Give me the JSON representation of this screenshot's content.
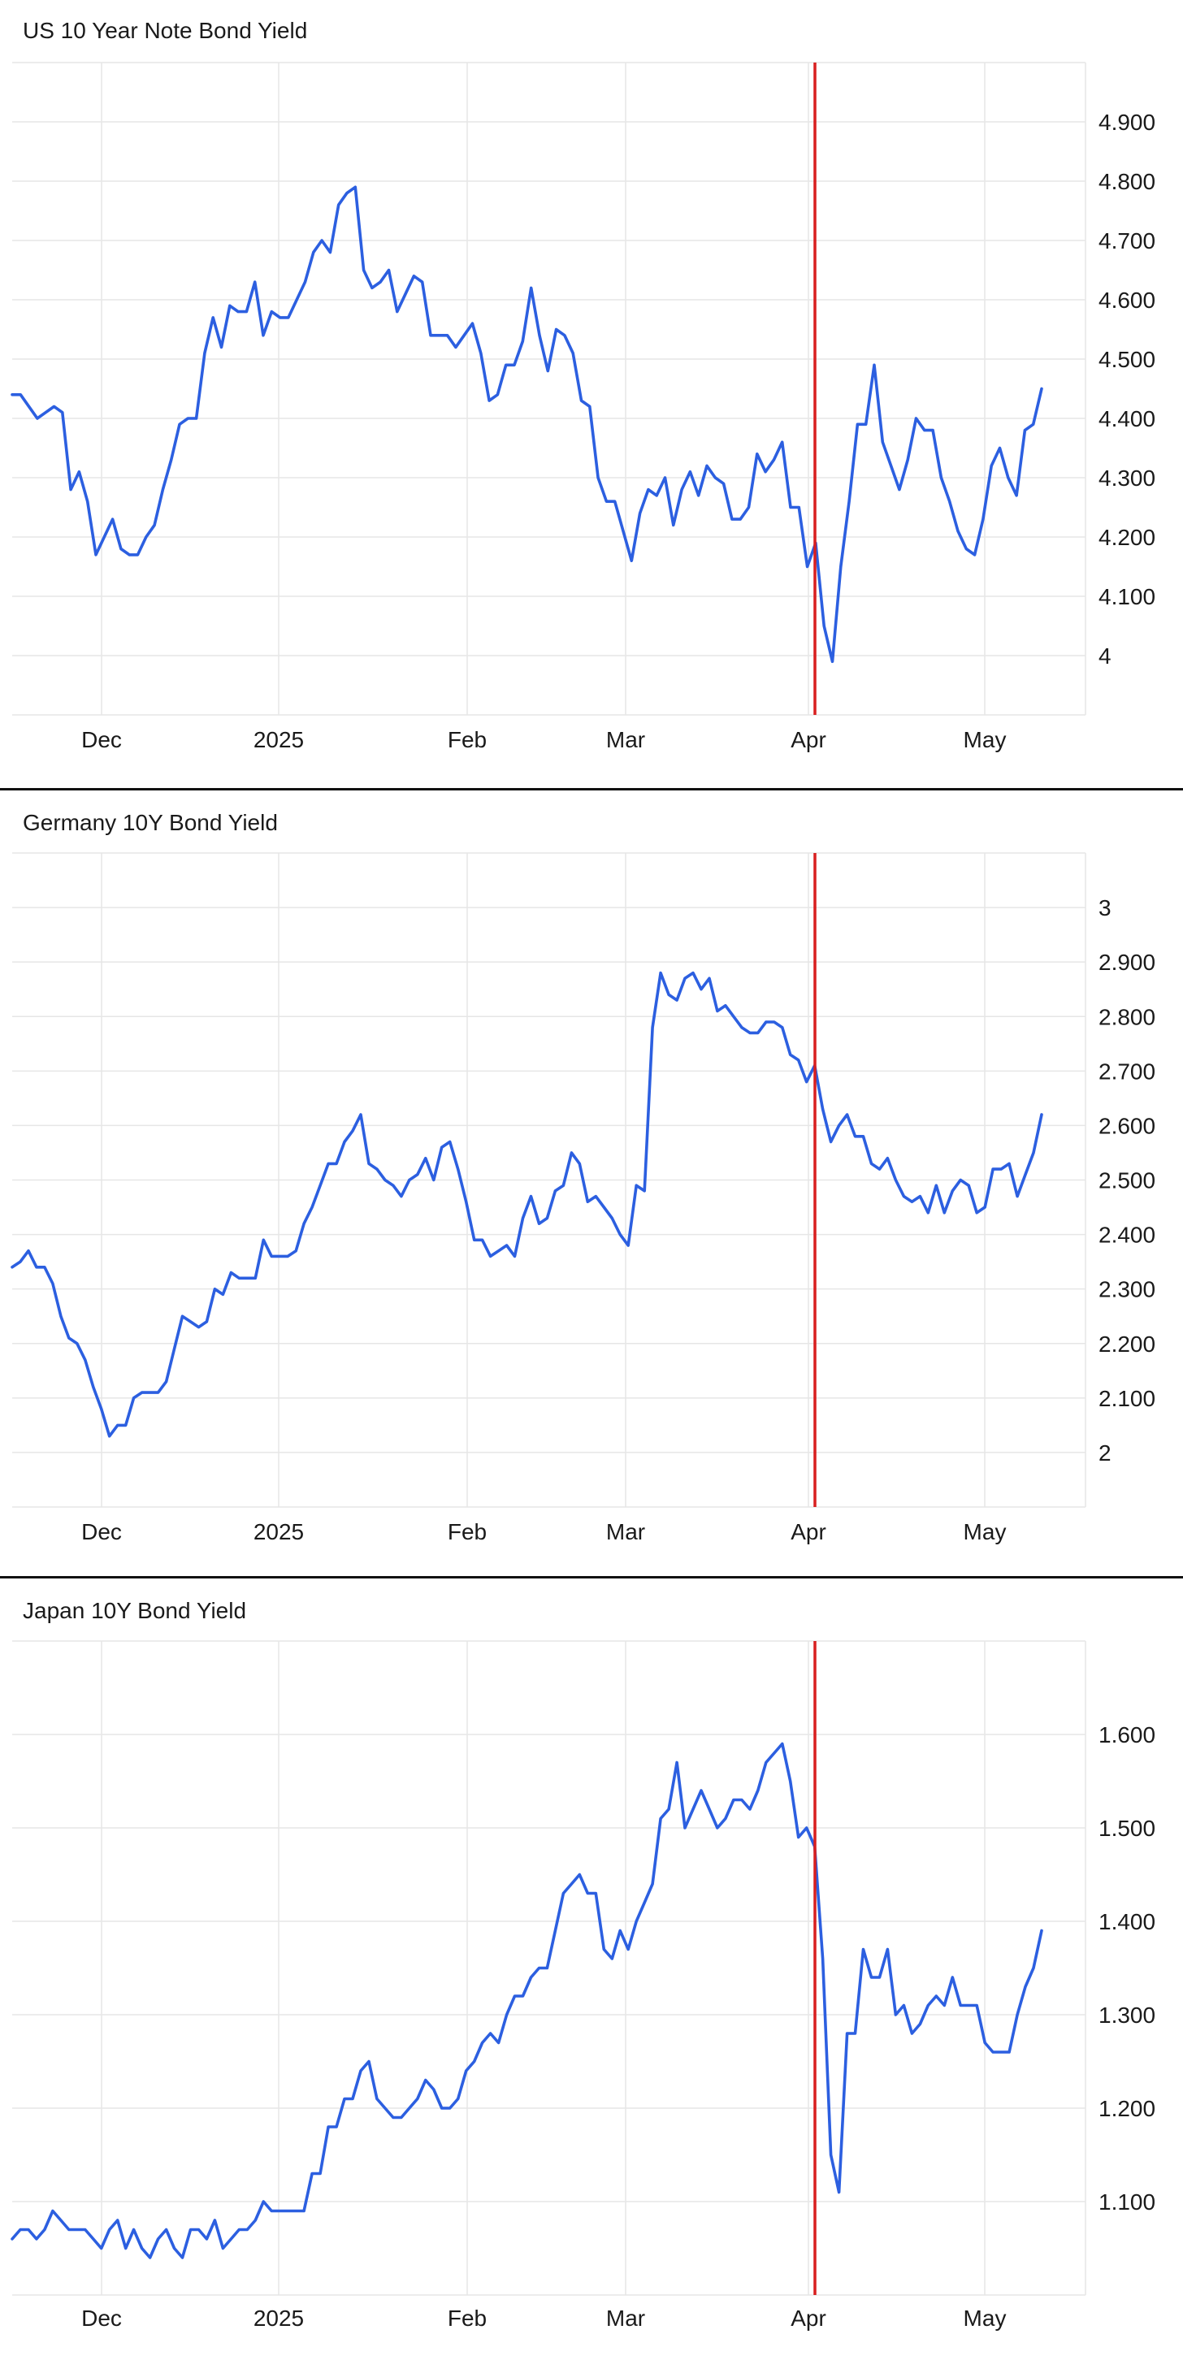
{
  "colors": {
    "series": "#2c5fe0",
    "marker": "#d81f1f",
    "grid": "#e6e6e6"
  },
  "chart_data": [
    {
      "type": "line",
      "title": "US 10 Year Note Bond Yield",
      "x_ticks": [
        "Dec",
        "2025",
        "Feb",
        "Mar",
        "Apr",
        "May"
      ],
      "y_ticks": [
        "4",
        "4.100",
        "4.200",
        "4.300",
        "4.400",
        "4.500",
        "4.600",
        "4.700",
        "4.800",
        "4.900"
      ],
      "ylim": [
        3.9,
        5.0
      ],
      "grid": true,
      "vertical_marker": {
        "x_label": "Apr",
        "color": "#d81f1f"
      },
      "series": [
        {
          "values": [
            4.44,
            4.44,
            4.42,
            4.4,
            4.41,
            4.42,
            4.41,
            4.28,
            4.31,
            4.26,
            4.17,
            4.2,
            4.23,
            4.18,
            4.17,
            4.17,
            4.2,
            4.22,
            4.28,
            4.33,
            4.39,
            4.4,
            4.4,
            4.51,
            4.57,
            4.52,
            4.59,
            4.58,
            4.58,
            4.63,
            4.54,
            4.58,
            4.57,
            4.57,
            4.6,
            4.63,
            4.68,
            4.7,
            4.68,
            4.76,
            4.78,
            4.79,
            4.65,
            4.62,
            4.63,
            4.65,
            4.58,
            4.61,
            4.64,
            4.63,
            4.54,
            4.54,
            4.54,
            4.52,
            4.54,
            4.56,
            4.51,
            4.43,
            4.44,
            4.49,
            4.49,
            4.53,
            4.62,
            4.54,
            4.48,
            4.55,
            4.54,
            4.51,
            4.43,
            4.42,
            4.3,
            4.26,
            4.26,
            4.21,
            4.16,
            4.24,
            4.28,
            4.27,
            4.3,
            4.22,
            4.28,
            4.31,
            4.27,
            4.32,
            4.3,
            4.29,
            4.23,
            4.23,
            4.25,
            4.34,
            4.31,
            4.33,
            4.36,
            4.25,
            4.25,
            4.15,
            4.19,
            4.05,
            3.99,
            4.15,
            4.26,
            4.39,
            4.39,
            4.49,
            4.36,
            4.32,
            4.28,
            4.33,
            4.4,
            4.38,
            4.38,
            4.3,
            4.26,
            4.21,
            4.18,
            4.17,
            4.23,
            4.32,
            4.35,
            4.3,
            4.27,
            4.38,
            4.39,
            4.45
          ]
        }
      ]
    },
    {
      "type": "line",
      "title": "Germany 10Y Bond Yield",
      "x_ticks": [
        "Dec",
        "2025",
        "Feb",
        "Mar",
        "Apr",
        "May"
      ],
      "y_ticks": [
        "2",
        "2.100",
        "2.200",
        "2.300",
        "2.400",
        "2.500",
        "2.600",
        "2.700",
        "2.800",
        "2.900",
        "3"
      ],
      "ylim": [
        1.9,
        3.1
      ],
      "grid": true,
      "vertical_marker": {
        "x_label": "Apr",
        "color": "#d81f1f"
      },
      "series": [
        {
          "values": [
            2.34,
            2.35,
            2.37,
            2.34,
            2.34,
            2.31,
            2.25,
            2.21,
            2.2,
            2.17,
            2.12,
            2.08,
            2.03,
            2.05,
            2.05,
            2.1,
            2.11,
            2.11,
            2.11,
            2.13,
            2.19,
            2.25,
            2.24,
            2.23,
            2.24,
            2.3,
            2.29,
            2.33,
            2.32,
            2.32,
            2.32,
            2.39,
            2.36,
            2.36,
            2.36,
            2.37,
            2.42,
            2.45,
            2.49,
            2.53,
            2.53,
            2.57,
            2.59,
            2.62,
            2.53,
            2.52,
            2.5,
            2.49,
            2.47,
            2.5,
            2.51,
            2.54,
            2.5,
            2.56,
            2.57,
            2.52,
            2.46,
            2.39,
            2.39,
            2.36,
            2.37,
            2.38,
            2.36,
            2.43,
            2.47,
            2.42,
            2.43,
            2.48,
            2.49,
            2.55,
            2.53,
            2.46,
            2.47,
            2.45,
            2.43,
            2.4,
            2.38,
            2.49,
            2.48,
            2.78,
            2.88,
            2.84,
            2.83,
            2.87,
            2.88,
            2.85,
            2.87,
            2.81,
            2.82,
            2.8,
            2.78,
            2.77,
            2.77,
            2.79,
            2.79,
            2.78,
            2.73,
            2.72,
            2.68,
            2.71,
            2.63,
            2.57,
            2.6,
            2.62,
            2.58,
            2.58,
            2.53,
            2.52,
            2.54,
            2.5,
            2.47,
            2.46,
            2.47,
            2.44,
            2.49,
            2.44,
            2.48,
            2.5,
            2.49,
            2.44,
            2.45,
            2.52,
            2.52,
            2.53,
            2.47,
            2.51,
            2.55,
            2.62
          ]
        }
      ]
    },
    {
      "type": "line",
      "title": "Japan 10Y Bond Yield",
      "x_ticks": [
        "Dec",
        "2025",
        "Feb",
        "Mar",
        "Apr",
        "May"
      ],
      "y_ticks": [
        "1.100",
        "1.200",
        "1.300",
        "1.400",
        "1.500",
        "1.600"
      ],
      "ylim": [
        1.0,
        1.7
      ],
      "grid": true,
      "vertical_marker": {
        "x_label": "Apr",
        "color": "#d81f1f"
      },
      "series": [
        {
          "values": [
            1.06,
            1.07,
            1.07,
            1.06,
            1.07,
            1.09,
            1.08,
            1.07,
            1.07,
            1.07,
            1.06,
            1.05,
            1.07,
            1.08,
            1.05,
            1.07,
            1.05,
            1.04,
            1.06,
            1.07,
            1.05,
            1.04,
            1.07,
            1.07,
            1.06,
            1.08,
            1.05,
            1.06,
            1.07,
            1.07,
            1.08,
            1.1,
            1.09,
            1.09,
            1.09,
            1.09,
            1.09,
            1.13,
            1.13,
            1.18,
            1.18,
            1.21,
            1.21,
            1.24,
            1.25,
            1.21,
            1.2,
            1.19,
            1.19,
            1.2,
            1.21,
            1.23,
            1.22,
            1.2,
            1.2,
            1.21,
            1.24,
            1.25,
            1.27,
            1.28,
            1.27,
            1.3,
            1.32,
            1.32,
            1.34,
            1.35,
            1.35,
            1.39,
            1.43,
            1.44,
            1.45,
            1.43,
            1.43,
            1.37,
            1.36,
            1.39,
            1.37,
            1.4,
            1.42,
            1.44,
            1.51,
            1.52,
            1.57,
            1.5,
            1.52,
            1.54,
            1.52,
            1.5,
            1.51,
            1.53,
            1.53,
            1.52,
            1.54,
            1.57,
            1.58,
            1.59,
            1.55,
            1.49,
            1.5,
            1.48,
            1.36,
            1.15,
            1.11,
            1.28,
            1.28,
            1.37,
            1.34,
            1.34,
            1.37,
            1.3,
            1.31,
            1.28,
            1.29,
            1.31,
            1.32,
            1.31,
            1.34,
            1.31,
            1.31,
            1.31,
            1.27,
            1.26,
            1.26,
            1.26,
            1.3,
            1.33,
            1.35,
            1.39
          ]
        }
      ]
    }
  ]
}
